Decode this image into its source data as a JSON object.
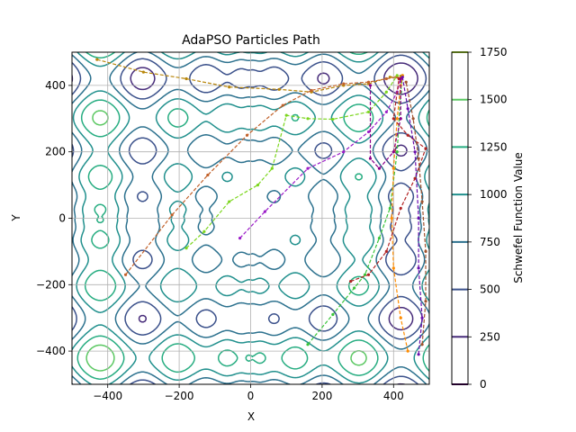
{
  "chart_data": [
    {
      "type": "contour",
      "title": "AdaPSO Particles Path",
      "xlabel": "X",
      "ylabel": "Y",
      "xlim": [
        -500,
        500
      ],
      "ylim": [
        -500,
        500
      ],
      "xticks": [
        -400,
        -200,
        0,
        200,
        400
      ],
      "yticks": [
        -400,
        -200,
        0,
        200,
        400
      ],
      "grid": true,
      "surface": "Schwefel function",
      "contour_levels": [
        250,
        500,
        750,
        1000,
        1250,
        1500,
        1750
      ],
      "level_colors": [
        "#472c7a",
        "#3b518b",
        "#2c718e",
        "#21908d",
        "#27ad81",
        "#5cc863",
        "#aadc32"
      ],
      "paths": [
        {
          "color": "#b8860b",
          "points": [
            [
              -430,
              478
            ],
            [
              -300,
              440
            ],
            [
              -180,
              420
            ],
            [
              -60,
              395
            ],
            [
              80,
              388
            ],
            [
              170,
              380
            ],
            [
              260,
              400
            ],
            [
              330,
              405
            ],
            [
              390,
              425
            ],
            [
              420,
              428
            ]
          ]
        },
        {
          "color": "#c2612a",
          "points": [
            [
              -350,
              -170
            ],
            [
              -220,
              10
            ],
            [
              -120,
              130
            ],
            [
              -10,
              250
            ],
            [
              90,
              340
            ],
            [
              170,
              385
            ],
            [
              260,
              405
            ],
            [
              330,
              410
            ],
            [
              380,
              420
            ],
            [
              410,
              425
            ]
          ]
        },
        {
          "color": "#7cd61e",
          "points": [
            [
              -180,
              -90
            ],
            [
              -130,
              -40
            ],
            [
              -60,
              50
            ],
            [
              20,
              100
            ],
            [
              60,
              150
            ],
            [
              100,
              310
            ],
            [
              160,
              300
            ],
            [
              230,
              298
            ],
            [
              330,
              320
            ],
            [
              380,
              380
            ],
            [
              410,
              430
            ]
          ]
        },
        {
          "color": "#9b1dc8",
          "points": [
            [
              -30,
              -60
            ],
            [
              40,
              20
            ],
            [
              160,
              150
            ],
            [
              260,
              200
            ],
            [
              330,
              260
            ],
            [
              380,
              320
            ],
            [
              410,
              380
            ],
            [
              420,
              420
            ]
          ]
        },
        {
          "color": "#3ac53a",
          "points": [
            [
              160,
              -380
            ],
            [
              230,
              -290
            ],
            [
              290,
              -210
            ],
            [
              320,
              -170
            ],
            [
              360,
              -60
            ],
            [
              390,
              30
            ],
            [
              410,
              200
            ],
            [
              420,
              380
            ],
            [
              425,
              430
            ]
          ]
        },
        {
          "color": "#ff8c00",
          "points": [
            [
              440,
              -400
            ],
            [
              420,
              -300
            ],
            [
              400,
              -150
            ],
            [
              395,
              0
            ],
            [
              400,
              150
            ],
            [
              410,
              300
            ],
            [
              420,
              400
            ],
            [
              425,
              430
            ]
          ]
        },
        {
          "color": "#b22222",
          "points": [
            [
              280,
              -190
            ],
            [
              330,
              -170
            ],
            [
              380,
              -100
            ],
            [
              420,
              30
            ],
            [
              460,
              120
            ],
            [
              490,
              210
            ],
            [
              440,
              250
            ],
            [
              400,
              300
            ],
            [
              415,
              420
            ]
          ]
        },
        {
          "color": "#a0522d",
          "points": [
            [
              480,
              -380
            ],
            [
              490,
              -250
            ],
            [
              490,
              -100
            ],
            [
              480,
              50
            ],
            [
              470,
              180
            ],
            [
              455,
              300
            ],
            [
              435,
              410
            ]
          ]
        },
        {
          "color": "#6a0dad",
          "points": [
            [
              470,
              -410
            ],
            [
              480,
              -300
            ],
            [
              470,
              -150
            ],
            [
              470,
              0
            ],
            [
              460,
              200
            ],
            [
              440,
              330
            ],
            [
              425,
              425
            ]
          ]
        },
        {
          "color": "#8b008b",
          "points": [
            [
              335,
              400
            ],
            [
              335,
              180
            ],
            [
              360,
              150
            ],
            [
              400,
              200
            ],
            [
              420,
              300
            ],
            [
              420,
              420
            ]
          ]
        }
      ]
    },
    {
      "type": "colorbar",
      "label": "Schwefel Function Value",
      "range": [
        0,
        1750
      ],
      "ticks": [
        0,
        250,
        500,
        750,
        1000,
        1250,
        1500,
        1750
      ],
      "tick_colors": [
        "#440154",
        "#472c7a",
        "#3b518b",
        "#2c718e",
        "#21908d",
        "#27ad81",
        "#5cc863",
        "#aadc32"
      ]
    }
  ]
}
